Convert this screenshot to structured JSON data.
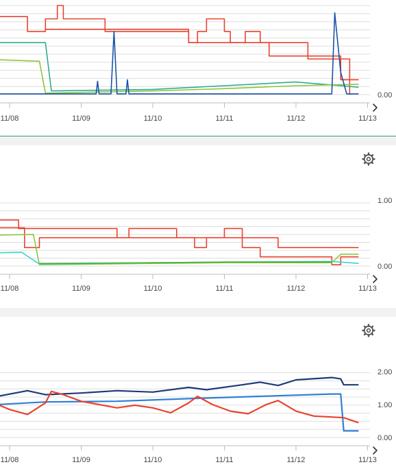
{
  "colors": {
    "red": "#e8432f",
    "teal": "#2eab8e",
    "lime": "#8cc63f",
    "blue_dark": "#1a53a7",
    "blue_mid": "#2f7fd6",
    "navy": "#1f3a78",
    "cyan": "#38d6c9",
    "green": "#4aae3a",
    "grid": "#dddddd",
    "settings_icon": "#555555"
  },
  "settings_icon": "gear-icon",
  "nav_icon": "chevron-right-icon",
  "chart_data": [
    {
      "type": "line",
      "x_ticks": [
        "11/08",
        "11/09",
        "11/10",
        "11/11",
        "11/12",
        "11/13"
      ],
      "y_ticks": [
        "0.00"
      ],
      "x_range": [
        "11/07 20:00",
        "11/12 21:00"
      ],
      "ylim": [
        0,
        1.2
      ],
      "grid": "horizontal",
      "series": [
        {
          "color": "red",
          "values": [
            [
              "11/07 20:00",
              1.05
            ],
            [
              "11/08 06:00",
              1.05
            ],
            [
              "11/08 06:00",
              0.85
            ],
            [
              "11/08 12:00",
              0.85
            ],
            [
              "11/08 12:00",
              1.02
            ],
            [
              "11/08 16:00",
              1.02
            ],
            [
              "11/08 16:00",
              1.2
            ],
            [
              "11/08 18:00",
              1.2
            ],
            [
              "11/08 18:00",
              1.02
            ],
            [
              "11/09 08:00",
              1.02
            ],
            [
              "11/09 08:00",
              0.85
            ],
            [
              "11/10 12:00",
              0.85
            ],
            [
              "11/10 12:00",
              0.7
            ],
            [
              "11/10 15:00",
              0.7
            ],
            [
              "11/10 15:00",
              0.85
            ],
            [
              "11/10 18:00",
              0.85
            ],
            [
              "11/10 18:00",
              1.02
            ],
            [
              "11/11 00:00",
              1.02
            ],
            [
              "11/11 00:00",
              0.85
            ],
            [
              "11/11 02:00",
              0.85
            ],
            [
              "11/11 02:00",
              0.7
            ],
            [
              "11/11 07:00",
              0.7
            ],
            [
              "11/11 07:00",
              0.85
            ],
            [
              "11/11 12:00",
              0.85
            ],
            [
              "11/11 12:00",
              0.7
            ],
            [
              "11/11 15:00",
              0.7
            ],
            [
              "11/11 15:00",
              0.52
            ],
            [
              "11/12 15:00",
              0.52
            ],
            [
              "11/12 15:00",
              0.2
            ],
            [
              "11/12 21:00",
              0.2
            ]
          ]
        },
        {
          "color": "red",
          "values": [
            [
              "11/08 12:00",
              0.88
            ],
            [
              "11/10 12:00",
              0.88
            ],
            [
              "11/10 12:00",
              0.7
            ],
            [
              "11/12 04:00",
              0.7
            ],
            [
              "11/12 04:00",
              0.48
            ],
            [
              "11/12 18:00",
              0.48
            ],
            [
              "11/12 18:00",
              0.0
            ]
          ]
        },
        {
          "color": "teal",
          "values": [
            [
              "11/07 20:00",
              0.7
            ],
            [
              "11/08 12:00",
              0.7
            ],
            [
              "11/08 14:00",
              0.05
            ],
            [
              "11/10 00:00",
              0.07
            ],
            [
              "11/11 00:00",
              0.12
            ],
            [
              "11/12 00:00",
              0.17
            ],
            [
              "11/12 21:00",
              0.1
            ]
          ]
        },
        {
          "color": "lime",
          "values": [
            [
              "11/07 20:00",
              0.47
            ],
            [
              "11/08 10:00",
              0.45
            ],
            [
              "11/08 12:00",
              0.02
            ],
            [
              "11/10 00:00",
              0.05
            ],
            [
              "11/11 00:00",
              0.08
            ],
            [
              "11/12 00:00",
              0.12
            ],
            [
              "11/12 21:00",
              0.14
            ]
          ]
        },
        {
          "color": "blue_dark",
          "values": [
            [
              "11/07 20:00",
              0.01
            ],
            [
              "11/09 05:00",
              0.01
            ],
            [
              "11/09 05:30",
              0.18
            ],
            [
              "11/09 06:00",
              0.01
            ],
            [
              "11/09 10:00",
              0.01
            ],
            [
              "11/09 11:00",
              0.85
            ],
            [
              "11/09 12:00",
              0.01
            ],
            [
              "11/09 15:00",
              0.01
            ],
            [
              "11/09 15:30",
              0.2
            ],
            [
              "11/09 16:00",
              0.01
            ],
            [
              "11/12 12:00",
              0.01
            ],
            [
              "11/12 13:00",
              1.1
            ],
            [
              "11/12 15:00",
              0.3
            ],
            [
              "11/12 17:00",
              0.01
            ],
            [
              "11/12 21:00",
              0.01
            ]
          ]
        }
      ]
    },
    {
      "type": "line",
      "x_ticks": [
        "11/08",
        "11/09",
        "11/10",
        "11/11",
        "11/12",
        "11/13"
      ],
      "y_ticks": [
        "1.00",
        "0.00"
      ],
      "x_range": [
        "11/07 20:00",
        "11/12 21:00"
      ],
      "ylim": [
        0,
        1.0
      ],
      "grid": "horizontal",
      "series": [
        {
          "color": "red",
          "values": [
            [
              "11/07 20:00",
              0.7
            ],
            [
              "11/08 03:00",
              0.7
            ],
            [
              "11/08 03:00",
              0.57
            ],
            [
              "11/09 12:00",
              0.57
            ],
            [
              "11/09 12:00",
              0.43
            ],
            [
              "11/09 16:00",
              0.43
            ],
            [
              "11/09 16:00",
              0.57
            ],
            [
              "11/10 08:00",
              0.57
            ],
            [
              "11/10 08:00",
              0.43
            ],
            [
              "11/10 14:00",
              0.43
            ],
            [
              "11/10 14:00",
              0.28
            ],
            [
              "11/10 18:00",
              0.28
            ],
            [
              "11/10 18:00",
              0.43
            ],
            [
              "11/11 00:00",
              0.43
            ],
            [
              "11/11 00:00",
              0.57
            ],
            [
              "11/11 06:00",
              0.57
            ],
            [
              "11/11 06:00",
              0.43
            ],
            [
              "11/11 18:00",
              0.43
            ],
            [
              "11/11 18:00",
              0.28
            ],
            [
              "11/12 12:00",
              0.28
            ],
            [
              "11/12 12:00",
              0.28
            ],
            [
              "11/12 21:00",
              0.28
            ]
          ]
        },
        {
          "color": "red",
          "values": [
            [
              "11/07 20:00",
              0.58
            ],
            [
              "11/08 05:00",
              0.58
            ],
            [
              "11/08 05:00",
              0.28
            ],
            [
              "11/08 10:00",
              0.28
            ],
            [
              "11/08 10:00",
              0.43
            ],
            [
              "11/08 20:00",
              0.43
            ],
            [
              "11/09 00:00",
              0.43
            ],
            [
              "11/11 06:00",
              0.43
            ],
            [
              "11/11 06:00",
              0.28
            ],
            [
              "11/11 12:00",
              0.28
            ],
            [
              "11/11 12:00",
              0.14
            ],
            [
              "11/12 04:00",
              0.14
            ],
            [
              "11/12 04:00",
              0.14
            ],
            [
              "11/12 12:00",
              0.14
            ],
            [
              "11/12 12:00",
              0.02
            ],
            [
              "11/12 15:00",
              0.02
            ],
            [
              "11/12 15:00",
              0.14
            ],
            [
              "11/12 21:00",
              0.14
            ]
          ]
        },
        {
          "color": "lime",
          "values": [
            [
              "11/07 20:00",
              0.47
            ],
            [
              "11/08 08:00",
              0.48
            ],
            [
              "11/08 10:00",
              0.02
            ],
            [
              "11/10 00:00",
              0.04
            ],
            [
              "11/11 00:00",
              0.05
            ],
            [
              "11/12 12:00",
              0.05
            ],
            [
              "11/12 15:00",
              0.18
            ],
            [
              "11/12 21:00",
              0.18
            ]
          ]
        },
        {
          "color": "cyan",
          "values": [
            [
              "11/07 20:00",
              0.2
            ],
            [
              "11/08 04:00",
              0.21
            ],
            [
              "11/08 10:00",
              0.03
            ],
            [
              "11/10 00:00",
              0.05
            ],
            [
              "11/11 00:00",
              0.06
            ],
            [
              "11/12 12:00",
              0.07
            ],
            [
              "11/12 18:00",
              0.05
            ],
            [
              "11/12 21:00",
              0.04
            ]
          ]
        },
        {
          "color": "green",
          "values": [
            [
              "11/08 10:00",
              0.04
            ],
            [
              "11/10 00:00",
              0.05
            ],
            [
              "11/11 00:00",
              0.06
            ],
            [
              "11/12 12:00",
              0.06
            ]
          ]
        }
      ]
    },
    {
      "type": "line",
      "x_ticks": [
        "11/08",
        "11/09",
        "11/10",
        "11/11",
        "11/12",
        "11/13"
      ],
      "y_ticks": [
        "2.00",
        "1.00",
        "0.00"
      ],
      "x_range": [
        "11/07 20:00",
        "11/12 21:00"
      ],
      "ylim": [
        0,
        2.0
      ],
      "grid": "horizontal",
      "series": [
        {
          "color": "navy",
          "values": [
            [
              "11/07 20:00",
              1.25
            ],
            [
              "11/08 06:00",
              1.42
            ],
            [
              "11/08 12:00",
              1.3
            ],
            [
              "11/09 00:00",
              1.35
            ],
            [
              "11/09 12:00",
              1.42
            ],
            [
              "11/10 00:00",
              1.38
            ],
            [
              "11/10 12:00",
              1.52
            ],
            [
              "11/10 18:00",
              1.45
            ],
            [
              "11/11 06:00",
              1.6
            ],
            [
              "11/11 12:00",
              1.68
            ],
            [
              "11/11 18:00",
              1.58
            ],
            [
              "11/12 00:00",
              1.75
            ],
            [
              "11/12 12:00",
              1.82
            ],
            [
              "11/12 15:00",
              1.78
            ],
            [
              "11/12 16:00",
              1.6
            ],
            [
              "11/12 21:00",
              1.6
            ]
          ]
        },
        {
          "color": "blue_mid",
          "values": [
            [
              "11/07 20:00",
              1.0
            ],
            [
              "11/08 12:00",
              1.08
            ],
            [
              "11/09 12:00",
              1.1
            ],
            [
              "11/10 12:00",
              1.18
            ],
            [
              "11/11 12:00",
              1.25
            ],
            [
              "11/12 12:00",
              1.32
            ],
            [
              "11/12 15:00",
              1.32
            ],
            [
              "11/12 16:00",
              0.2
            ],
            [
              "11/12 21:00",
              0.2
            ]
          ]
        },
        {
          "color": "red",
          "values": [
            [
              "11/07 20:00",
              1.0
            ],
            [
              "11/08 00:00",
              0.85
            ],
            [
              "11/08 06:00",
              0.7
            ],
            [
              "11/08 12:00",
              1.05
            ],
            [
              "11/08 14:00",
              1.4
            ],
            [
              "11/08 18:00",
              1.3
            ],
            [
              "11/09 00:00",
              1.1
            ],
            [
              "11/09 06:00",
              1.0
            ],
            [
              "11/09 12:00",
              0.9
            ],
            [
              "11/09 18:00",
              0.98
            ],
            [
              "11/10 00:00",
              0.9
            ],
            [
              "11/10 06:00",
              0.75
            ],
            [
              "11/10 12:00",
              1.05
            ],
            [
              "11/10 15:00",
              1.25
            ],
            [
              "11/10 20:00",
              1.0
            ],
            [
              "11/11 02:00",
              0.8
            ],
            [
              "11/11 08:00",
              0.72
            ],
            [
              "11/11 14:00",
              1.0
            ],
            [
              "11/11 18:00",
              1.12
            ],
            [
              "11/12 00:00",
              0.8
            ],
            [
              "11/12 06:00",
              0.65
            ],
            [
              "11/12 12:00",
              0.62
            ],
            [
              "11/12 16:00",
              0.6
            ],
            [
              "11/12 21:00",
              0.45
            ]
          ]
        }
      ]
    }
  ]
}
